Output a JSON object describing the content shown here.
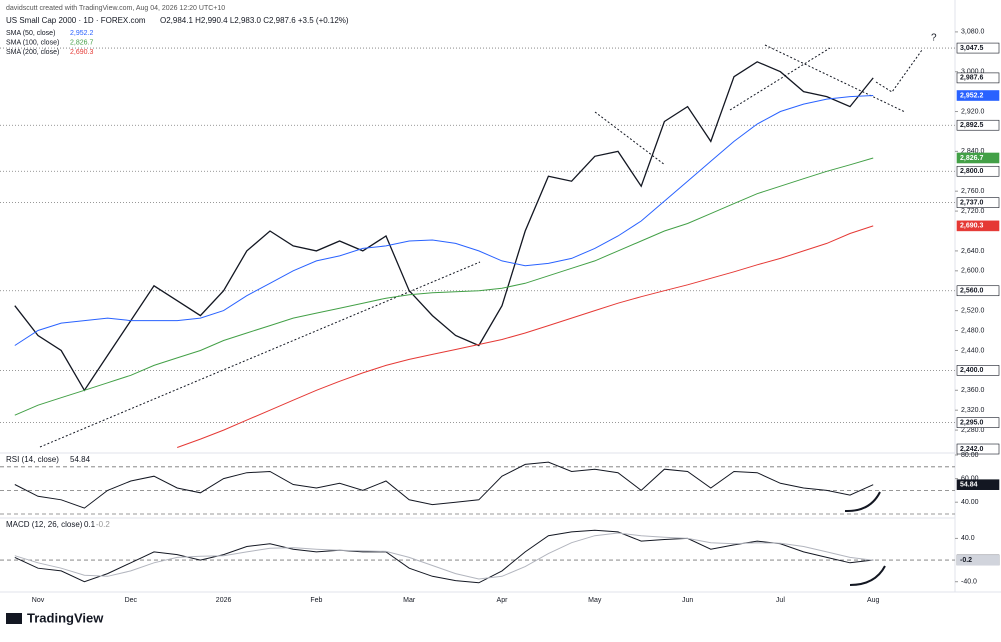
{
  "header": {
    "credit": "davidscutt created with TradingView.com, Aug 04, 2026 12:20 UTC+10",
    "symbol": "US Small Cap 2000 · 1D · FOREX.com",
    "ohlc": "O2,984.1  H2,990.4  L2,983.0  C2,987.6  +3.5 (+0.12%)",
    "brand": "TradingView",
    "annotation": "?"
  },
  "chart_data": [
    {
      "type": "line",
      "categories": [
        null,
        "Nov",
        null,
        null,
        null,
        "Dec",
        null,
        null,
        null,
        "2026",
        null,
        null,
        null,
        "Feb",
        null,
        null,
        null,
        "Mar",
        null,
        null,
        null,
        "Apr",
        null,
        null,
        null,
        "May",
        null,
        null,
        null,
        "Jun",
        null,
        null,
        null,
        "Jul",
        null,
        null,
        null,
        "Aug"
      ],
      "series": [
        {
          "name": "US Small Cap 2000",
          "color": "#131722",
          "values": [
            2530,
            2470,
            2440,
            2360,
            2430,
            2500,
            2570,
            2540,
            2510,
            2560,
            2640,
            2680,
            2650,
            2640,
            2660,
            2640,
            2670,
            2560,
            2510,
            2470,
            2450,
            2530,
            2680,
            2790,
            2780,
            2830,
            2840,
            2770,
            2900,
            2930,
            2860,
            2990,
            3020,
            3000,
            2960,
            2950,
            2930,
            2987.6
          ]
        },
        {
          "name": "SMA (50, close)",
          "legend_value": "2,952.2",
          "color": "#2962ff",
          "values": [
            2450,
            2480,
            2495,
            2500,
            2505,
            2500,
            2500,
            2500,
            2505,
            2520,
            2550,
            2575,
            2600,
            2620,
            2630,
            2645,
            2650,
            2660,
            2662,
            2655,
            2640,
            2620,
            2610,
            2615,
            2625,
            2645,
            2670,
            2700,
            2740,
            2780,
            2820,
            2860,
            2895,
            2920,
            2935,
            2945,
            2950,
            2952.2
          ]
        },
        {
          "name": "SMA (100, close)",
          "legend_value": "2,826.7",
          "color": "#43a047",
          "values": [
            2310,
            2330,
            2345,
            2360,
            2375,
            2390,
            2410,
            2425,
            2440,
            2460,
            2475,
            2490,
            2505,
            2515,
            2525,
            2535,
            2545,
            2552,
            2556,
            2558,
            2560,
            2565,
            2575,
            2590,
            2605,
            2620,
            2640,
            2660,
            2680,
            2695,
            2715,
            2735,
            2755,
            2770,
            2785,
            2800,
            2813,
            2826.7
          ]
        },
        {
          "name": "SMA (200, close)",
          "legend_value": "2,690.3",
          "color": "#e53935",
          "values": [
            null,
            null,
            null,
            null,
            null,
            null,
            null,
            2245,
            2262,
            2280,
            2300,
            2320,
            2340,
            2360,
            2378,
            2395,
            2410,
            2422,
            2432,
            2442,
            2452,
            2462,
            2475,
            2490,
            2505,
            2520,
            2535,
            2548,
            2560,
            2572,
            2585,
            2598,
            2612,
            2625,
            2640,
            2655,
            2675,
            2690.3
          ]
        }
      ],
      "ylim": [
        2236,
        3124
      ],
      "yticks": [
        {
          "value": 3080,
          "label": "3,080.0"
        },
        {
          "value": 3000,
          "label": "3,000.0"
        },
        {
          "value": 2920,
          "label": "2,920.0"
        },
        {
          "value": 2840,
          "label": "2,840.0"
        },
        {
          "value": 2760,
          "label": "2,760.0"
        },
        {
          "value": 2720,
          "label": "2,720.0"
        },
        {
          "value": 2640,
          "label": "2,640.0"
        },
        {
          "value": 2600,
          "label": "2,600.0"
        },
        {
          "value": 2520,
          "label": "2,520.0"
        },
        {
          "value": 2480,
          "label": "2,480.0"
        },
        {
          "value": 2440,
          "label": "2,440.0"
        },
        {
          "value": 2360,
          "label": "2,360.0"
        },
        {
          "value": 2320,
          "label": "2,320.0"
        },
        {
          "value": 2280,
          "label": "2,280.0"
        }
      ],
      "levels": [
        3047.5,
        2892.5,
        2800,
        2737,
        2560,
        2400,
        2295
      ],
      "price_tags": [
        {
          "value": 3047.5,
          "label": "3,047.5",
          "color": "#131722",
          "bg": "#ffffff"
        },
        {
          "value": 2987.6,
          "label": "2,987.6",
          "color": "#131722",
          "bg": "#ffffff"
        },
        {
          "value": 2952.2,
          "label": "2,952.2",
          "color": "#ffffff",
          "bg": "#2962ff"
        },
        {
          "value": 2892.5,
          "label": "2,892.5",
          "color": "#131722",
          "bg": "#ffffff"
        },
        {
          "value": 2826.7,
          "label": "2,826.7",
          "color": "#ffffff",
          "bg": "#43a047"
        },
        {
          "value": 2800,
          "label": "2,800.0",
          "color": "#131722",
          "bg": "#ffffff"
        },
        {
          "value": 2737,
          "label": "2,737.0",
          "color": "#131722",
          "bg": "#ffffff"
        },
        {
          "value": 2690.3,
          "label": "2,690.3",
          "color": "#ffffff",
          "bg": "#e53935"
        },
        {
          "value": 2560,
          "label": "2,560.0",
          "color": "#131722",
          "bg": "#ffffff"
        },
        {
          "value": 2400,
          "label": "2,400.0",
          "color": "#131722",
          "bg": "#ffffff"
        },
        {
          "value": 2295,
          "label": "2,295.0",
          "color": "#131722",
          "bg": "#ffffff"
        },
        {
          "value": 2242,
          "label": "2,242.0",
          "color": "#131722",
          "bg": "#ffffff"
        }
      ]
    },
    {
      "type": "line",
      "title": "RSI (14, close)",
      "legend_value": "54.84",
      "series": [
        {
          "name": "RSI",
          "color": "#131722",
          "values": [
            55,
            45,
            42,
            35,
            50,
            58,
            62,
            52,
            48,
            60,
            65,
            66,
            55,
            52,
            56,
            50,
            58,
            42,
            38,
            40,
            42,
            62,
            72,
            74,
            66,
            68,
            65,
            50,
            68,
            66,
            52,
            66,
            65,
            56,
            52,
            50,
            46,
            54.84
          ]
        }
      ],
      "ylim": [
        30,
        80
      ],
      "yticks": [
        {
          "value": 80,
          "label": "80.00"
        },
        {
          "value": 60,
          "label": "60.00"
        },
        {
          "value": 40,
          "label": "40.00"
        }
      ],
      "levels": [
        70,
        50,
        30
      ],
      "price_tags": [
        {
          "value": 54.84,
          "label": "54.84",
          "color": "#ffffff",
          "bg": "#131722"
        }
      ]
    },
    {
      "type": "line",
      "title": "MACD (12, 26, close)",
      "legend_value": "0.1",
      "legend_value2": "-0.2",
      "series": [
        {
          "name": "MACD",
          "color": "#131722",
          "values": [
            5,
            -15,
            -20,
            -40,
            -25,
            -5,
            15,
            10,
            0,
            10,
            25,
            30,
            20,
            15,
            18,
            15,
            15,
            -15,
            -30,
            -38,
            -42,
            -20,
            15,
            45,
            52,
            55,
            52,
            35,
            38,
            40,
            20,
            28,
            35,
            30,
            15,
            5,
            -5,
            0.1
          ]
        },
        {
          "name": "Signal",
          "color": "#b2b5be",
          "values": [
            8,
            -5,
            -15,
            -28,
            -30,
            -20,
            -5,
            5,
            7,
            8,
            15,
            22,
            23,
            20,
            18,
            17,
            16,
            5,
            -10,
            -25,
            -35,
            -30,
            -12,
            12,
            32,
            45,
            50,
            45,
            42,
            40,
            32,
            30,
            32,
            31,
            25,
            15,
            5,
            -0.2
          ]
        }
      ],
      "ylim": [
        -59,
        74
      ],
      "yticks": [
        {
          "value": 40,
          "label": "40.0"
        },
        {
          "value": -40,
          "label": "-40.0"
        }
      ],
      "levels": [
        0
      ],
      "price_tags": [
        {
          "value": 0.1,
          "label": "0.1",
          "color": "#ffffff",
          "bg": "#131722"
        },
        {
          "value": -0.2,
          "label": "-0.2",
          "color": "#131722",
          "bg": "#d1d4dc"
        }
      ]
    }
  ]
}
